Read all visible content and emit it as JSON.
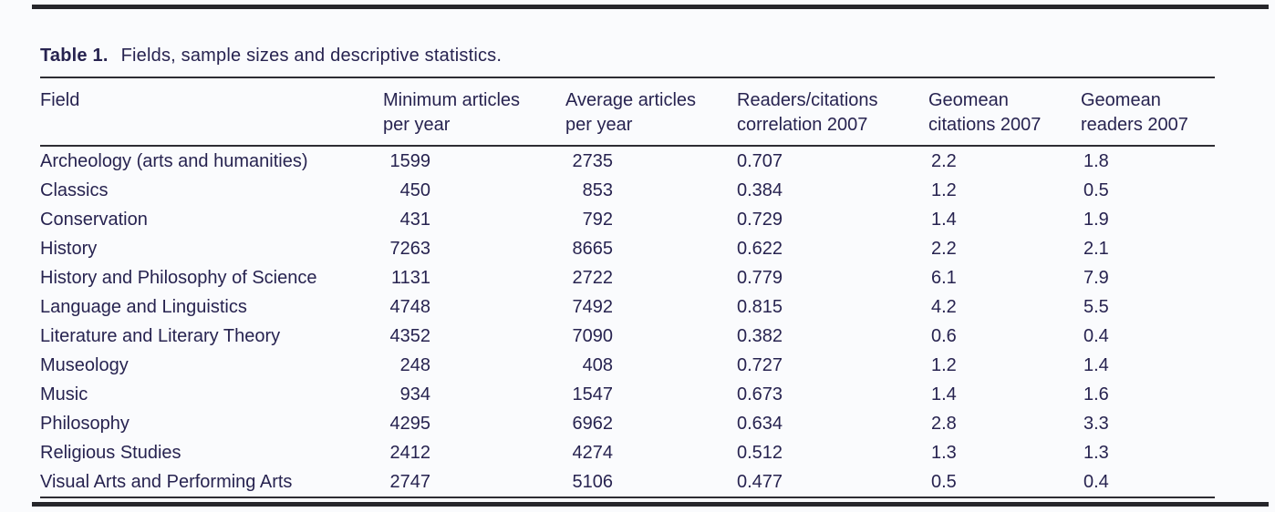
{
  "caption": {
    "label": "Table 1.",
    "text": "Fields, sample sizes and descriptive statistics."
  },
  "table": {
    "headers": [
      {
        "line1": "Field",
        "line2": ""
      },
      {
        "line1": "Minimum articles",
        "line2": "per year"
      },
      {
        "line1": "Average articles",
        "line2": "per year"
      },
      {
        "line1": "Readers/citations",
        "line2": "correlation 2007"
      },
      {
        "line1": "Geomean",
        "line2": "citations 2007"
      },
      {
        "line1": "Geomean",
        "line2": "readers 2007"
      }
    ],
    "rows": [
      {
        "field": "Archeology (arts and humanities)",
        "min": "1599",
        "avg": "2735",
        "corr": "0.707",
        "geo_cit": "2.2",
        "geo_read": "1.8"
      },
      {
        "field": "Classics",
        "min": "450",
        "avg": "853",
        "corr": "0.384",
        "geo_cit": "1.2",
        "geo_read": "0.5"
      },
      {
        "field": "Conservation",
        "min": "431",
        "avg": "792",
        "corr": "0.729",
        "geo_cit": "1.4",
        "geo_read": "1.9"
      },
      {
        "field": "History",
        "min": "7263",
        "avg": "8665",
        "corr": "0.622",
        "geo_cit": "2.2",
        "geo_read": "2.1"
      },
      {
        "field": "History and Philosophy of Science",
        "min": "1131",
        "avg": "2722",
        "corr": "0.779",
        "geo_cit": "6.1",
        "geo_read": "7.9"
      },
      {
        "field": "Language and Linguistics",
        "min": "4748",
        "avg": "7492",
        "corr": "0.815",
        "geo_cit": "4.2",
        "geo_read": "5.5"
      },
      {
        "field": "Literature and Literary Theory",
        "min": "4352",
        "avg": "7090",
        "corr": "0.382",
        "geo_cit": "0.6",
        "geo_read": "0.4"
      },
      {
        "field": "Museology",
        "min": "248",
        "avg": "408",
        "corr": "0.727",
        "geo_cit": "1.2",
        "geo_read": "1.4"
      },
      {
        "field": "Music",
        "min": "934",
        "avg": "1547",
        "corr": "0.673",
        "geo_cit": "1.4",
        "geo_read": "1.6"
      },
      {
        "field": "Philosophy",
        "min": "4295",
        "avg": "6962",
        "corr": "0.634",
        "geo_cit": "2.8",
        "geo_read": "3.3"
      },
      {
        "field": "Religious Studies",
        "min": "2412",
        "avg": "4274",
        "corr": "0.512",
        "geo_cit": "1.3",
        "geo_read": "1.3"
      },
      {
        "field": "Visual Arts and Performing Arts",
        "min": "2747",
        "avg": "5106",
        "corr": "0.477",
        "geo_cit": "0.5",
        "geo_read": "0.4"
      }
    ]
  },
  "colors": {
    "text": "#272350",
    "thin_rule": "#2e2d33",
    "heavy_rule": "#26262b",
    "page_background": "#fafbfd"
  }
}
